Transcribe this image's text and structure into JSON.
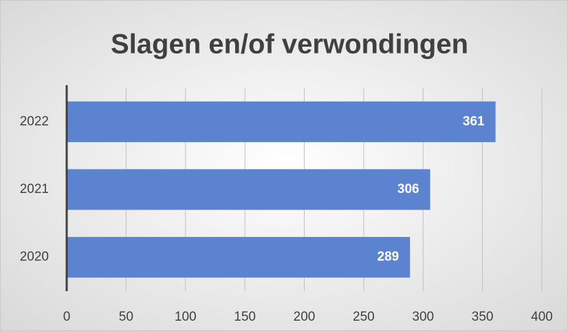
{
  "chart_data": {
    "type": "bar",
    "orientation": "horizontal",
    "title": "Slagen en/of verwondingen",
    "categories": [
      "2022",
      "2021",
      "2020"
    ],
    "values": [
      361,
      306,
      289
    ],
    "color": "#5b83cf",
    "xlim": [
      0,
      400
    ],
    "xticks": [
      0,
      50,
      100,
      150,
      200,
      250,
      300,
      350,
      400
    ],
    "grid": true
  }
}
